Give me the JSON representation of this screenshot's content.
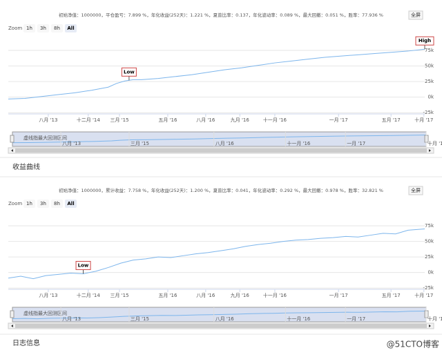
{
  "chart_data": [
    {
      "type": "line",
      "subtitle": "初始净值：1000000，平仓盈亏：7.899 %，年化收益(252天)：1.221 %，夏普比率：0.137，年化波动率：0.089 %，最大回撤：0.051 %，胜率：77.936 %",
      "fullscreen_label": "全屏",
      "zoom_label": "Zoom",
      "zoom_buttons": [
        "1h",
        "3h",
        "8h",
        "All"
      ],
      "navigator_note": "虚线指最大回测区间",
      "xlim": [
        0,
        100
      ],
      "ylim": [
        -27,
        95
      ],
      "yticks": [
        {
          "value": 75,
          "label": "75k"
        },
        {
          "value": 50,
          "label": "50k"
        },
        {
          "value": 25,
          "label": "25k"
        },
        {
          "value": 0,
          "label": "0k"
        },
        {
          "value": -25,
          "label": "-25k"
        }
      ],
      "xticks": [
        {
          "value": 9.6,
          "label": "八月 '13"
        },
        {
          "value": 19.2,
          "label": "十二月 '14"
        },
        {
          "value": 26.7,
          "label": "三月 '15"
        },
        {
          "value": 38.3,
          "label": "五月 '16"
        },
        {
          "value": 47.4,
          "label": "八月 '16"
        },
        {
          "value": 55.6,
          "label": "九月 '16"
        },
        {
          "value": 64,
          "label": "十一月 '16"
        },
        {
          "value": 79.3,
          "label": "一月 '17"
        },
        {
          "value": 91.9,
          "label": "五月 '17"
        },
        {
          "value": 99.8,
          "label": "十月 '17"
        }
      ],
      "navigator_ticks": [
        {
          "value": 11.7,
          "label": "八月 '13"
        },
        {
          "value": 28.2,
          "label": "三月 '15"
        },
        {
          "value": 48.7,
          "label": "八月 '16"
        },
        {
          "value": 66,
          "label": "十一月 '16"
        },
        {
          "value": 80.5,
          "label": "一月 '17"
        },
        {
          "value": 100,
          "label": "十月 '17"
        }
      ],
      "flags": [
        {
          "label": "Low",
          "x": 29
        },
        {
          "label": "High",
          "x": 100
        }
      ],
      "series": [
        {
          "color": "#7cb5ec",
          "x": [
            0,
            4,
            8,
            12,
            16,
            20,
            24,
            26,
            28,
            30,
            32,
            36,
            40,
            44,
            48,
            52,
            56,
            60,
            64,
            68,
            72,
            76,
            80,
            84,
            88,
            92,
            96,
            100
          ],
          "values": [
            -3,
            -2,
            1,
            4,
            7,
            11,
            16,
            22,
            26,
            28,
            28,
            30,
            33,
            36,
            40,
            44,
            47,
            51,
            55,
            58,
            61,
            64,
            66,
            68,
            70,
            72,
            74,
            77
          ]
        }
      ]
    },
    {
      "type": "line",
      "subtitle": "初始净值：1000000，累计收益：7.758 %，年化收益(252天)：1.200 %，夏普比率：0.041，年化波动率：0.292 %，最大回撤：0.978 %，胜率：32.821 %",
      "fullscreen_label": "全屏",
      "zoom_label": "Zoom",
      "zoom_buttons": [
        "1h",
        "3h",
        "8h",
        "All"
      ],
      "navigator_note": "虚线指最大回测区间",
      "xlim": [
        0,
        100
      ],
      "ylim": [
        -27,
        95
      ],
      "yticks": [
        {
          "value": 75,
          "label": "75k"
        },
        {
          "value": 50,
          "label": "50k"
        },
        {
          "value": 25,
          "label": "25k"
        },
        {
          "value": 0,
          "label": "0k"
        },
        {
          "value": -25,
          "label": "-25k"
        }
      ],
      "xticks": [
        {
          "value": 9.6,
          "label": "八月 '13"
        },
        {
          "value": 19.2,
          "label": "十二月 '14"
        },
        {
          "value": 26.7,
          "label": "三月 '15"
        },
        {
          "value": 38.3,
          "label": "五月 '16"
        },
        {
          "value": 47.4,
          "label": "八月 '16"
        },
        {
          "value": 55.6,
          "label": "九月 '16"
        },
        {
          "value": 64,
          "label": "十一月 '16"
        },
        {
          "value": 79.3,
          "label": "一月 '17"
        },
        {
          "value": 91.9,
          "label": "五月 '17"
        },
        {
          "value": 99.8,
          "label": "十月 '17"
        }
      ],
      "navigator_ticks": [
        {
          "value": 11.7,
          "label": "八月 '13"
        },
        {
          "value": 28.2,
          "label": "三月 '15"
        },
        {
          "value": 48.7,
          "label": "八月 '16"
        },
        {
          "value": 66,
          "label": "十一月 '16"
        },
        {
          "value": 80.5,
          "label": "一月 '17"
        },
        {
          "value": 100,
          "label": "十月 '17"
        }
      ],
      "flags": [
        {
          "label": "Low",
          "x": 18
        }
      ],
      "series": [
        {
          "color": "#7cb5ec",
          "x": [
            0,
            3,
            6,
            9,
            12,
            15,
            18,
            21,
            24,
            27,
            30,
            33,
            36,
            39,
            42,
            45,
            48,
            51,
            54,
            57,
            60,
            63,
            66,
            69,
            72,
            75,
            78,
            81,
            84,
            87,
            90,
            93,
            96,
            100
          ],
          "values": [
            -9,
            -6,
            -10,
            -5,
            -3,
            -1,
            -2,
            2,
            8,
            15,
            20,
            22,
            25,
            24,
            27,
            30,
            32,
            35,
            38,
            42,
            45,
            47,
            50,
            52,
            53,
            55,
            56,
            58,
            57,
            60,
            63,
            62,
            68,
            70
          ]
        }
      ]
    }
  ],
  "section_titles": [
    "收益曲线",
    "日志信息"
  ],
  "watermark": "@51CTO博客"
}
